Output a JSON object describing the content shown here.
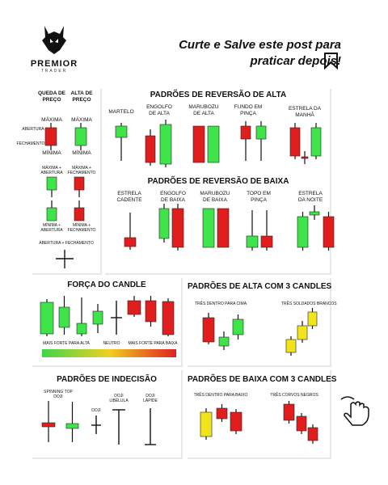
{
  "brand": {
    "name": "PREMIOR",
    "sub": "TRADER"
  },
  "headline": {
    "line1": "Curte e Salve este post para",
    "line2": "praticar depois!"
  },
  "icons": [
    "wolf-logo",
    "bookmark-icon",
    "hand-pointer-icon",
    "plus-icon"
  ],
  "colors": {
    "bull": "#3fe34a",
    "bear": "#e01e1e",
    "neutral": "#f2e41a",
    "wick": "#111111"
  },
  "legend": {
    "queda": "QUEDA DE PREÇO",
    "alta": "ALTA DE PREÇO",
    "maxima": "MÁXIMA",
    "minima": "MÍNIMA",
    "abertura": "ABERTURA",
    "fechamento": "FECHAMENTO",
    "max_abertura": "MÁXIMA + ABERTURA",
    "max_fechamento": "MÁXIMA + FECHAMENTO",
    "min_abertura": "MÍNIMA + ABERTURA",
    "min_fechamento": "MÍNIMA + FECHAMENTO",
    "abertura_fechamento": "ABERTURA + FECHAMENTO"
  },
  "reversao_alta": {
    "title": "PADRÕES DE REVERSÃO DE ALTA",
    "items": [
      "MARTELO",
      "ENGOLFO DE ALTA",
      "MARUBOZU DE ALTA",
      "FUNDO EM PINÇA",
      "ESTRELA DA MANHÃ"
    ]
  },
  "reversao_baixa": {
    "title": "PADRÕES DE REVERSÃO DE BAIXA",
    "items": [
      "ESTRELA CADENTE",
      "ENGOLFO DE BAIXA",
      "MARUBOZU DE BAIXA",
      "TOPO EM PINÇA",
      "ESTRELA DA NOITE"
    ]
  },
  "forca": {
    "title": "FORÇA DO CANDLE",
    "left": "MAIS FORTE PARA ALTA",
    "mid": "NEUTRO",
    "right": "MAIS FORTE PARA BAIXA"
  },
  "alta3": {
    "title": "PADRÕES DE ALTA COM 3 CANDLES",
    "items": [
      "TRÊS DENTRO PARA CIMA",
      "TRÊS SOLDADOS BRANCOS"
    ]
  },
  "indecisao": {
    "title": "PADRÕES DE INDECISÃO",
    "items": [
      "SPINNING TOP DOJI",
      "DOJI",
      "DOJI LIBÉLULA",
      "DOJI LÁPIDE"
    ]
  },
  "baixa3": {
    "title": "PADRÕES DE BAIXA COM 3 CANDLES",
    "items": [
      "TRÊS DENTRO PARA BAIXO",
      "TRÊS CORVOS NEGROS"
    ]
  }
}
